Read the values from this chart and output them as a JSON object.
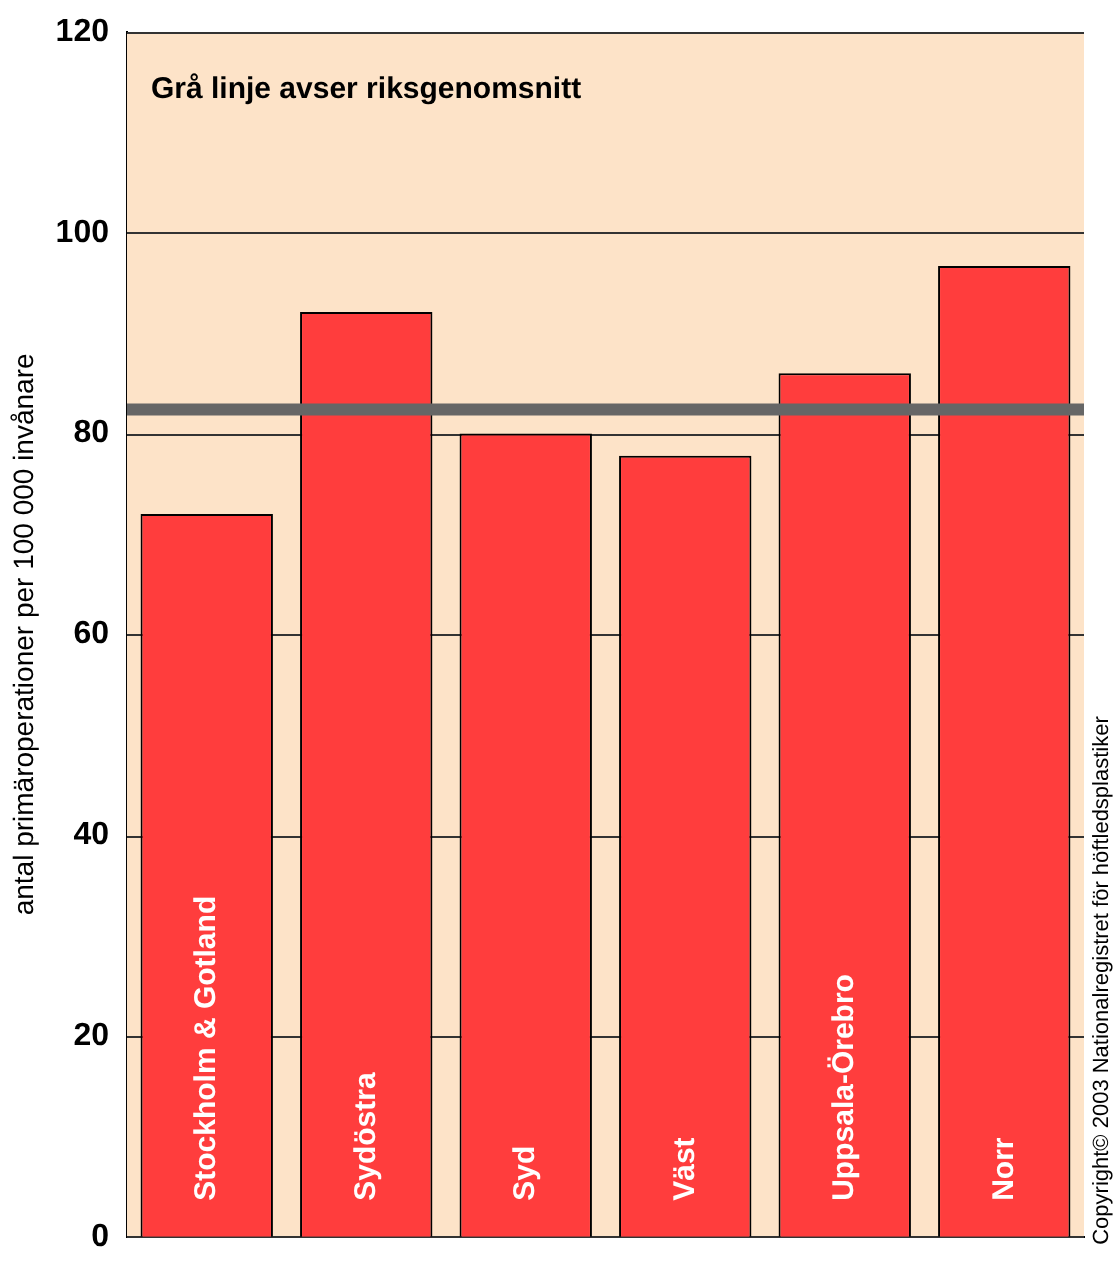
{
  "chart_data": {
    "type": "bar",
    "ylabel": "antal primäroperationer per 100 000 invånare",
    "categories": [
      "Stockholm & Gotland",
      "Sydöstra",
      "Syd",
      "Väst",
      "Uppsala-Örebro",
      "Norr"
    ],
    "values": [
      72,
      92.1,
      80,
      77.8,
      86,
      96.7
    ],
    "color": "#ff3d3d",
    "ylim": [
      0,
      120
    ],
    "yticks": [
      0,
      20,
      40,
      60,
      80,
      100,
      120
    ],
    "grid": "y",
    "bands": [
      {
        "axis": "y",
        "from": 0,
        "to": 120,
        "color": "#fde3c8"
      }
    ],
    "ref_lines": [
      {
        "axis": "y",
        "value": 82.4,
        "color": "#666666"
      }
    ],
    "annotations": [
      "Grå linje avser riksgenomsnitt",
      "Copyright© 2003 Nationalregistret för höftledsplastiker"
    ]
  }
}
